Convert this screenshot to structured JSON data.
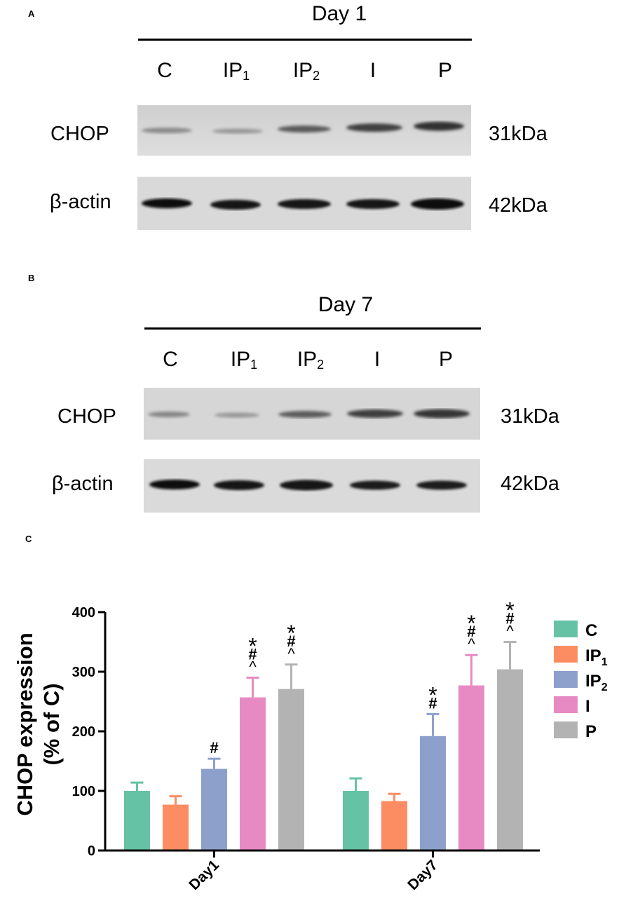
{
  "panels": {
    "a": {
      "letter": "A",
      "title": "Day 1",
      "lanes": [
        {
          "main": "C",
          "sub": ""
        },
        {
          "main": "IP",
          "sub": "1"
        },
        {
          "main": "IP",
          "sub": "2"
        },
        {
          "main": "I",
          "sub": ""
        },
        {
          "main": "P",
          "sub": ""
        }
      ],
      "protein_label": "CHOP",
      "protein_size": "31kDa",
      "control_label": "β-actin",
      "control_size": "42kDa"
    },
    "b": {
      "letter": "B",
      "title": "Day 7",
      "lanes": [
        {
          "main": "C",
          "sub": ""
        },
        {
          "main": "IP",
          "sub": "1"
        },
        {
          "main": "IP",
          "sub": "2"
        },
        {
          "main": "I",
          "sub": ""
        },
        {
          "main": "P",
          "sub": ""
        }
      ],
      "protein_label": "CHOP",
      "protein_size": "31kDa",
      "control_label": "β-actin",
      "control_size": "42kDa"
    },
    "c": {
      "letter": "C"
    }
  },
  "colors": {
    "C": "#66c2a5",
    "IP1": "#fc8d62",
    "IP2": "#8da0cb",
    "I": "#e78ac3",
    "P": "#b3b3b3"
  },
  "chart_data": {
    "type": "bar",
    "categories": [
      "Day1",
      "Day7"
    ],
    "ylabel_line1": "CHOP expression",
    "ylabel_line2": "(% of C)",
    "ylim": [
      0,
      400
    ],
    "yticks": [
      "0",
      "100",
      "200",
      "300",
      "400"
    ],
    "grid": false,
    "legend_position": "right",
    "series": [
      {
        "name": "C",
        "sub": "",
        "color": "#66c2a5",
        "values": [
          100,
          100
        ],
        "errors": [
          14,
          21
        ],
        "annotations": [
          [],
          []
        ]
      },
      {
        "name": "IP",
        "sub": "1",
        "color": "#fc8d62",
        "values": [
          77,
          83
        ],
        "errors": [
          14,
          12
        ],
        "annotations": [
          [],
          []
        ]
      },
      {
        "name": "IP",
        "sub": "2",
        "color": "#8da0cb",
        "values": [
          137,
          192
        ],
        "errors": [
          17,
          37
        ],
        "annotations": [
          [
            "#"
          ],
          [
            "*",
            "#"
          ]
        ]
      },
      {
        "name": "I",
        "sub": "",
        "color": "#e78ac3",
        "values": [
          257,
          277
        ],
        "errors": [
          33,
          51
        ],
        "annotations": [
          [
            "*",
            "#",
            "^"
          ],
          [
            "*",
            "#",
            "^"
          ]
        ]
      },
      {
        "name": "P",
        "sub": "",
        "color": "#b3b3b3",
        "values": [
          271,
          304
        ],
        "errors": [
          41,
          46
        ],
        "annotations": [
          [
            "*",
            "#",
            "^"
          ],
          [
            "*",
            "#",
            "^"
          ]
        ]
      }
    ]
  }
}
